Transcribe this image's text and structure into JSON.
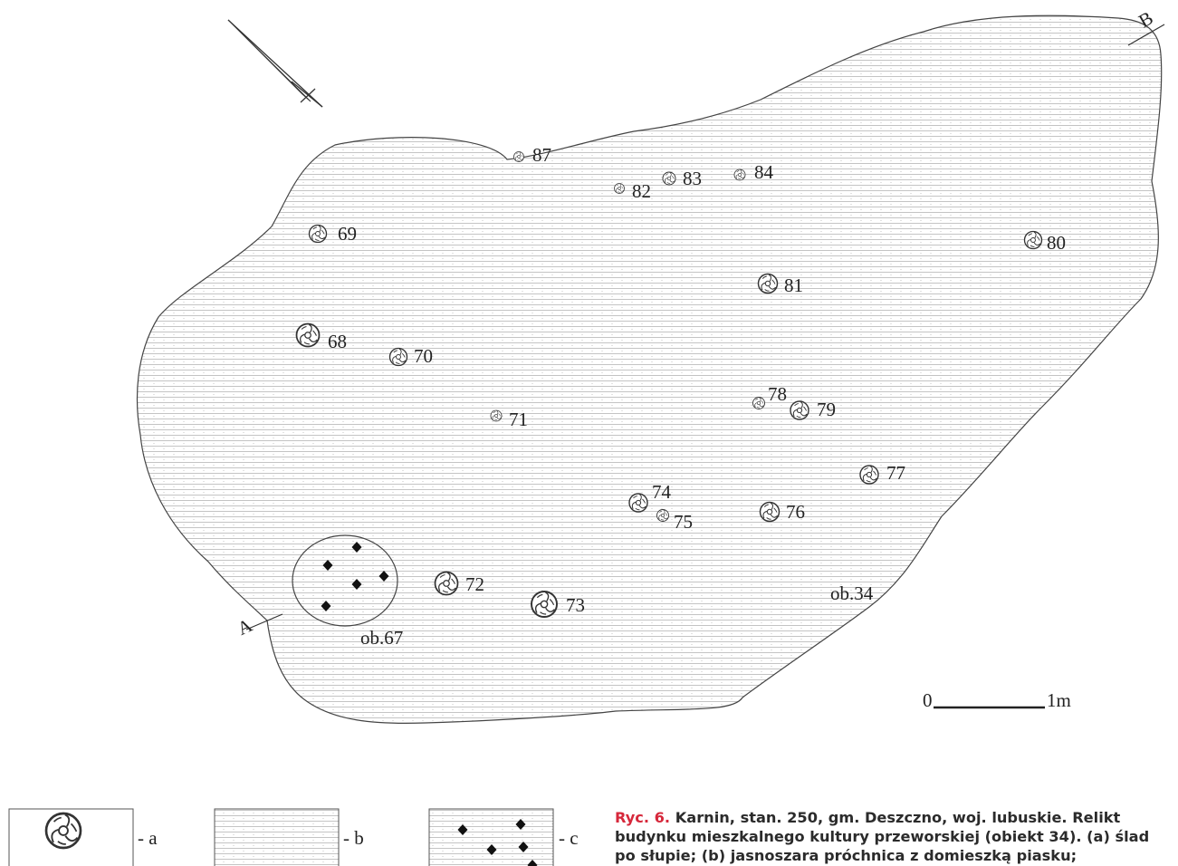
{
  "features": [
    {
      "label": "87",
      "size": "s"
    },
    {
      "label": "82",
      "size": "s"
    },
    {
      "label": "83",
      "size": "s"
    },
    {
      "label": "84",
      "size": "s"
    },
    {
      "label": "69",
      "size": "m"
    },
    {
      "label": "80",
      "size": "m"
    },
    {
      "label": "81",
      "size": "m"
    },
    {
      "label": "68",
      "size": "l"
    },
    {
      "label": "70",
      "size": "m"
    },
    {
      "label": "78",
      "size": "s"
    },
    {
      "label": "79",
      "size": "m"
    },
    {
      "label": "71",
      "size": "s"
    },
    {
      "label": "77",
      "size": "m"
    },
    {
      "label": "74",
      "size": "m"
    },
    {
      "label": "75",
      "size": "s"
    },
    {
      "label": "76",
      "size": "m"
    },
    {
      "label": "72",
      "size": "l"
    },
    {
      "label": "73",
      "size": "l"
    }
  ],
  "objects": {
    "main": "ob.34",
    "pit": "ob.67"
  },
  "section": {
    "a": "A",
    "b": "B"
  },
  "scale": {
    "start": "0",
    "end": "1m"
  },
  "legend": [
    {
      "key": "- a",
      "symbol": "post-hole"
    },
    {
      "key": "- b",
      "symbol": "humus-with-sand"
    },
    {
      "key": "- c",
      "symbol": "hatched-with-stones"
    }
  ],
  "caption": {
    "figure": "Ryc. 6.",
    "text": "Karnin, stan. 250, gm. Deszczno, woj. lubuskie. Relikt budynku mieszkalnego kultury przeworskiej (obiekt 34). (a) ślad po słupie; (b) jasnoszara próchnica z domieszką piasku;"
  },
  "colors": {
    "ink": "#222222",
    "caption_accent": "#d6283b"
  }
}
